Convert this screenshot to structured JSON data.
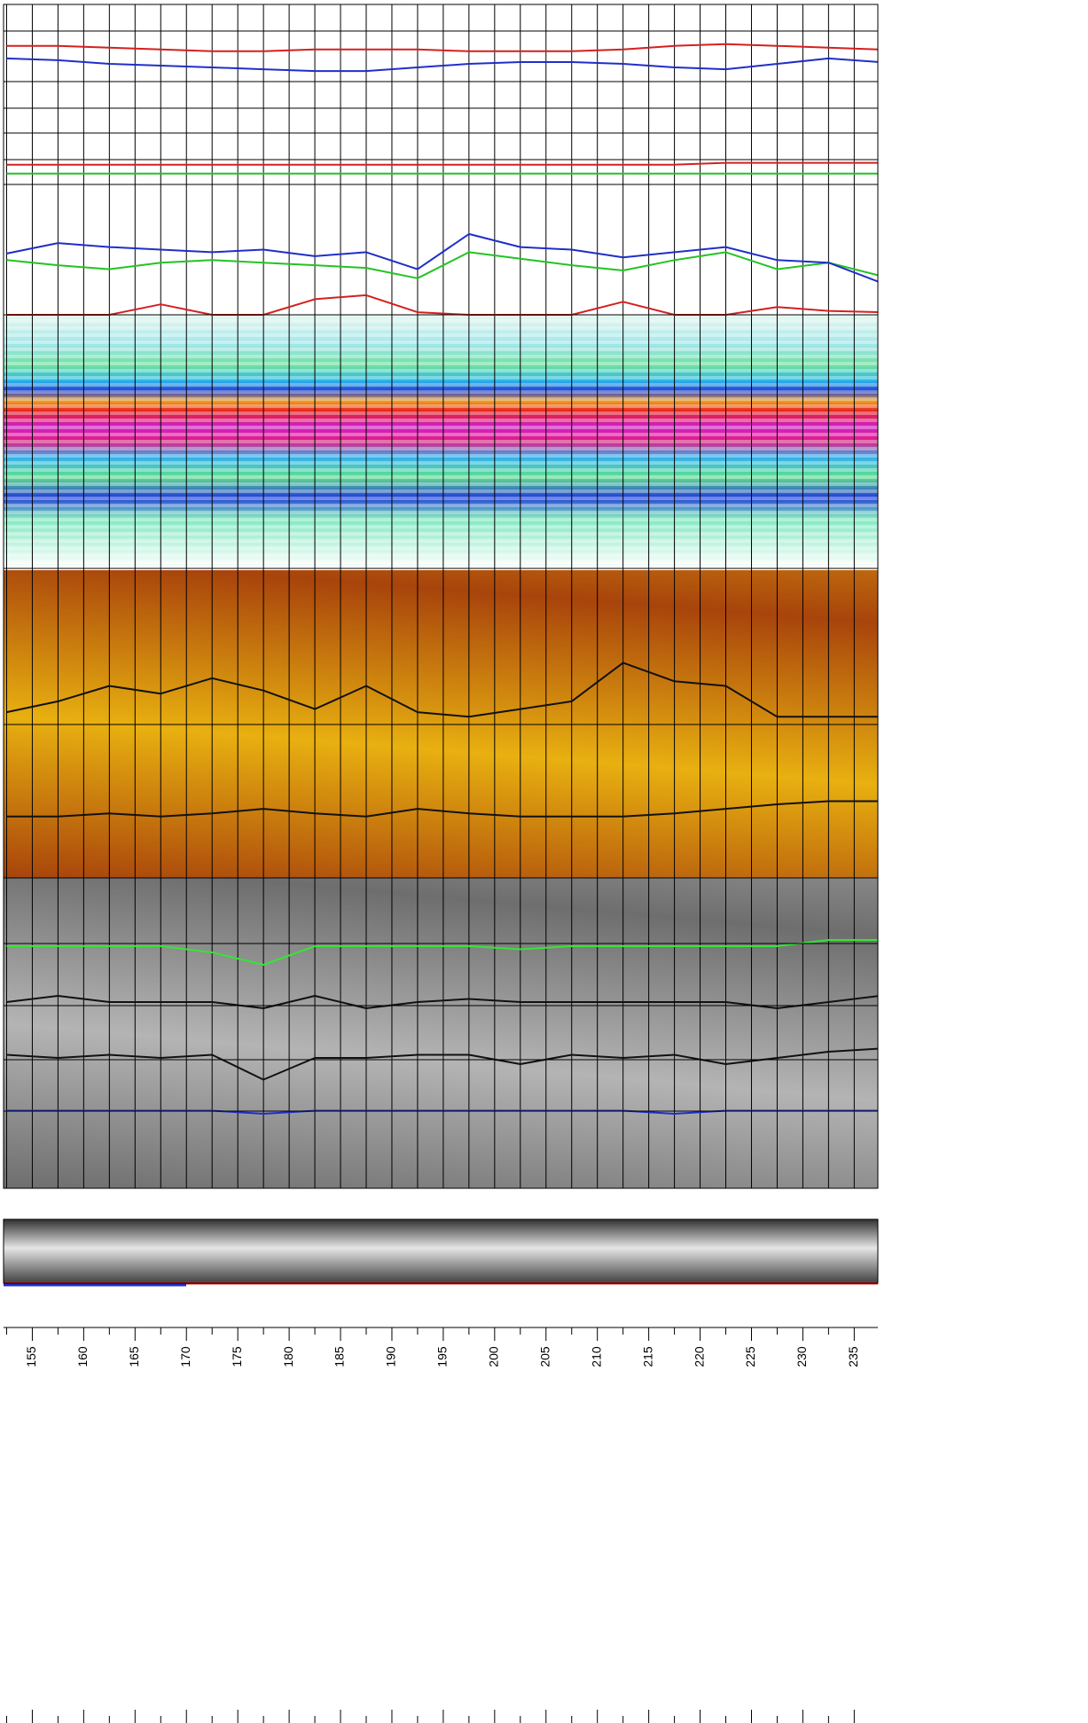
{
  "chart_data": {
    "type": "log",
    "x": [
      152.5,
      157.5,
      162.5,
      167.5,
      172.5,
      177.5,
      182.5,
      187.5,
      192.5,
      197.5,
      202.5,
      207.5,
      212.5,
      217.5,
      222.5,
      227.5,
      232.5,
      237.5
    ],
    "xlim": [
      152.2,
      237.3
    ],
    "xticks": [
      155,
      160,
      165,
      170,
      175,
      180,
      185,
      190,
      195,
      200,
      205,
      210,
      215,
      220,
      225,
      230,
      235
    ],
    "grid": true,
    "tracks": [
      {
        "ylim": [
          0,
          100
        ],
        "series": [
          {
            "color": "#d42020",
            "values": [
              77,
              77,
              76,
              75,
              74,
              74,
              75,
              75,
              75,
              74,
              74,
              74,
              75,
              77,
              78,
              77,
              76,
              75
            ]
          },
          {
            "color": "#1f2fc8",
            "values": [
              70,
              69,
              67,
              66,
              65,
              64,
              63,
              63,
              65,
              67,
              68,
              68,
              67,
              65,
              64,
              67,
              70,
              68
            ]
          },
          {
            "color": "#d42020",
            "values": [
              11,
              11,
              11,
              11,
              11,
              11,
              11,
              11,
              11,
              11,
              11,
              11,
              11,
              11,
              12,
              12,
              12,
              12
            ]
          },
          {
            "color": "#22c422",
            "values": [
              6,
              6,
              6,
              6,
              6,
              6,
              6,
              6,
              6,
              6,
              6,
              6,
              6,
              6,
              6,
              6,
              6,
              6
            ]
          }
        ]
      },
      {
        "ylim": [
          0,
          100
        ],
        "series": [
          {
            "color": "#22c422",
            "values": [
              42,
              38,
              35,
              40,
              42,
              40,
              38,
              36,
              28,
              48,
              43,
              38,
              34,
              42,
              48,
              35,
              40,
              30
            ]
          },
          {
            "color": "#1f2fc8",
            "values": [
              47,
              55,
              52,
              50,
              48,
              50,
              45,
              48,
              35,
              62,
              52,
              50,
              44,
              48,
              52,
              42,
              40,
              25
            ]
          },
          {
            "color": "#d42020",
            "values": [
              0,
              0,
              0,
              8,
              0,
              0,
              12,
              15,
              2,
              0,
              0,
              0,
              10,
              0,
              0,
              6,
              3,
              2
            ]
          }
        ]
      },
      {
        "ylim": [
          0,
          100
        ],
        "series": [
          {
            "color": "#111111",
            "values": [
              8,
              15,
              25,
              20,
              30,
              22,
              10,
              25,
              8,
              5,
              10,
              15,
              40,
              28,
              25,
              5,
              5,
              5
            ]
          }
        ]
      },
      {
        "ylim": [
          0,
          100
        ],
        "series": [
          {
            "color": "#111111",
            "values": [
              40,
              40,
              42,
              40,
              42,
              45,
              42,
              40,
              45,
              42,
              40,
              40,
              40,
              42,
              45,
              48,
              50,
              50
            ]
          }
        ]
      },
      {
        "ylim": [
          0,
          100
        ],
        "series": [
          {
            "color": "#33e633",
            "values": [
              78,
              78,
              78,
              78,
              76,
              72,
              78,
              78,
              78,
              78,
              77,
              78,
              78,
              78,
              78,
              78,
              80,
              80
            ]
          },
          {
            "color": "#111111",
            "values": [
              60,
              62,
              60,
              60,
              60,
              58,
              62,
              58,
              60,
              61,
              60,
              60,
              60,
              60,
              60,
              58,
              60,
              62
            ]
          },
          {
            "color": "#111111",
            "values": [
              43,
              42,
              43,
              42,
              43,
              35,
              42,
              42,
              43,
              43,
              40,
              43,
              42,
              43,
              40,
              42,
              44,
              45
            ]
          },
          {
            "color": "#1f2fc8",
            "values": [
              25,
              25,
              25,
              25,
              25,
              24,
              25,
              25,
              25,
              25,
              25,
              25,
              25,
              24,
              25,
              25,
              25,
              25
            ]
          }
        ]
      }
    ]
  }
}
